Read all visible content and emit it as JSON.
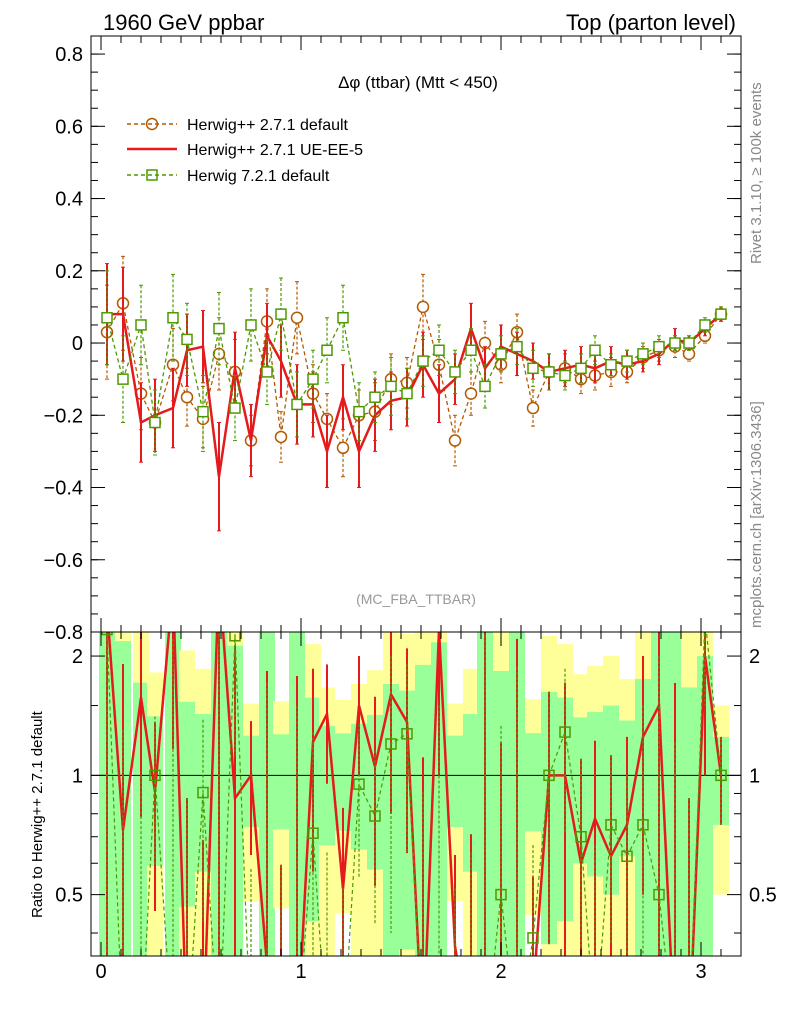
{
  "header": {
    "left": "1960 GeV ppbar",
    "right": "Top (parton level)"
  },
  "side_labels": {
    "rivet": "Rivet 3.1.10, ≥ 100k events",
    "mcplots": "mcplots.cern.ch [arXiv:1306.3436]"
  },
  "chart_data": {
    "type": "line",
    "title": "Δφ (ttbar) (Mtt < 450)",
    "analysis_tag": "(MC_FBA_TTBAR)",
    "xlim": [
      -0.05,
      3.2
    ],
    "ylim": [
      -0.8,
      0.85
    ],
    "x_ticks": [
      "0",
      "1",
      "2",
      "3"
    ],
    "y_ticks": [
      "0.8",
      "0.6",
      "0.4",
      "0.2",
      "0",
      "−0.2",
      "−0.4",
      "−0.6",
      "−0.8"
    ],
    "legend_position": "top-left",
    "x": [
      0.03,
      0.11,
      0.2,
      0.27,
      0.36,
      0.43,
      0.51,
      0.59,
      0.67,
      0.75,
      0.83,
      0.9,
      0.98,
      1.06,
      1.13,
      1.21,
      1.29,
      1.37,
      1.45,
      1.53,
      1.61,
      1.69,
      1.77,
      1.85,
      1.92,
      2.0,
      2.08,
      2.16,
      2.24,
      2.32,
      2.4,
      2.47,
      2.55,
      2.63,
      2.71,
      2.79,
      2.87,
      2.94,
      3.02,
      3.1
    ],
    "series": [
      {
        "name": "Herwig++ 2.7.1 default",
        "color": "#b35900",
        "marker": "circle",
        "values": [
          0.03,
          0.11,
          -0.14,
          -0.22,
          -0.06,
          -0.15,
          -0.21,
          -0.03,
          -0.08,
          -0.27,
          0.06,
          -0.26,
          0.07,
          -0.14,
          -0.21,
          -0.29,
          -0.2,
          -0.19,
          -0.1,
          -0.11,
          0.1,
          -0.06,
          -0.27,
          -0.14,
          0.0,
          -0.06,
          0.03,
          -0.18,
          -0.08,
          -0.07,
          -0.1,
          -0.09,
          -0.08,
          -0.08,
          -0.04,
          -0.02,
          -0.01,
          -0.03,
          0.02,
          0.08
        ],
        "errors": [
          0.13,
          0.13,
          0.1,
          0.09,
          0.1,
          0.08,
          0.09,
          0.1,
          0.09,
          0.07,
          0.09,
          0.07,
          0.1,
          0.08,
          0.07,
          0.08,
          0.07,
          0.08,
          0.07,
          0.07,
          0.09,
          0.07,
          0.07,
          0.06,
          0.06,
          0.05,
          0.05,
          0.05,
          0.05,
          0.04,
          0.04,
          0.04,
          0.04,
          0.03,
          0.03,
          0.03,
          0.03,
          0.02,
          0.02,
          0.02
        ]
      },
      {
        "name": "Herwig++ 2.7.1 UE-EE-5",
        "color": "#e41a1c",
        "marker": "none",
        "values": [
          0.08,
          0.08,
          -0.22,
          -0.2,
          -0.18,
          -0.02,
          -0.01,
          -0.37,
          -0.07,
          -0.27,
          0.02,
          -0.05,
          -0.17,
          -0.17,
          -0.3,
          -0.15,
          -0.3,
          -0.2,
          -0.16,
          -0.15,
          -0.06,
          -0.14,
          -0.1,
          0.04,
          -0.07,
          -0.01,
          -0.03,
          -0.05,
          -0.08,
          -0.07,
          -0.06,
          -0.07,
          -0.05,
          -0.06,
          -0.05,
          -0.03,
          0.01,
          0.0,
          0.04,
          0.08
        ],
        "errors": [
          0.14,
          0.13,
          0.11,
          0.1,
          0.11,
          0.1,
          0.1,
          0.15,
          0.1,
          0.1,
          0.09,
          0.1,
          0.11,
          0.09,
          0.1,
          0.09,
          0.1,
          0.1,
          0.08,
          0.08,
          0.09,
          0.08,
          0.07,
          0.07,
          0.06,
          0.06,
          0.06,
          0.05,
          0.05,
          0.05,
          0.05,
          0.04,
          0.04,
          0.04,
          0.03,
          0.03,
          0.03,
          0.02,
          0.02,
          0.02
        ]
      },
      {
        "name": "Herwig 7.2.1 default",
        "color": "#4d9900",
        "marker": "square",
        "values": [
          0.07,
          -0.1,
          0.05,
          -0.22,
          0.07,
          0.01,
          -0.19,
          0.04,
          -0.18,
          0.05,
          -0.08,
          0.08,
          -0.17,
          -0.1,
          -0.02,
          0.07,
          -0.19,
          -0.15,
          -0.12,
          -0.14,
          -0.05,
          -0.02,
          -0.08,
          -0.02,
          -0.12,
          -0.03,
          -0.01,
          -0.07,
          -0.08,
          -0.09,
          -0.07,
          -0.02,
          -0.06,
          -0.05,
          -0.03,
          -0.01,
          0.0,
          0.0,
          0.05,
          0.08
        ],
        "errors": [
          0.13,
          0.12,
          0.11,
          0.09,
          0.12,
          0.1,
          0.1,
          0.1,
          0.09,
          0.1,
          0.09,
          0.1,
          0.09,
          0.08,
          0.09,
          0.09,
          0.08,
          0.07,
          0.08,
          0.07,
          0.07,
          0.07,
          0.06,
          0.06,
          0.06,
          0.05,
          0.05,
          0.05,
          0.05,
          0.04,
          0.04,
          0.04,
          0.03,
          0.03,
          0.03,
          0.03,
          0.02,
          0.02,
          0.02,
          0.02
        ]
      }
    ],
    "ratio_panel": {
      "ylabel": "Ratio to Herwig++ 2.7.1 default",
      "ylim": [
        0.35,
        2.3
      ],
      "y_ticks": [
        "2",
        "1",
        "0.5"
      ],
      "band_colors": {
        "inner": "#99ff99",
        "outer": "#ffff99"
      },
      "reference_value": 1
    }
  }
}
